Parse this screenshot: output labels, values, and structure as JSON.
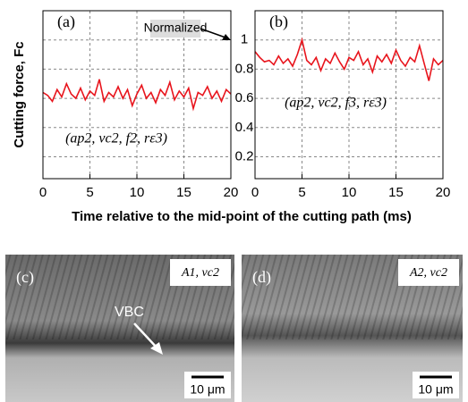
{
  "chart_data": [
    {
      "type": "line",
      "panel_label": "(a)",
      "annotation": "(ap2, vc2, f2, rε3)",
      "normalized_note": "Normalized",
      "y_axis_label": "Cutting force, Fc",
      "x_axis_label": "Time relative to the mid-point of the cutting path (ms)",
      "xlim": [
        0,
        20
      ],
      "xticks": [
        0,
        5,
        10,
        15,
        20
      ],
      "ylim": [
        0.05,
        1.2
      ],
      "yticks": [
        0.2,
        0.4,
        0.6,
        0.8,
        1.0
      ],
      "grid": true,
      "series": [
        {
          "color": "#e8141c",
          "x": [
            0,
            0.5,
            1,
            1.5,
            2,
            2.5,
            3,
            3.5,
            4,
            4.5,
            5,
            5.5,
            6,
            6.5,
            7,
            7.5,
            8,
            8.5,
            9,
            9.5,
            10,
            10.5,
            11,
            11.5,
            12,
            12.5,
            13,
            13.5,
            14,
            14.5,
            15,
            15.5,
            16,
            16.5,
            17,
            17.5,
            18,
            18.5,
            19,
            19.5,
            20
          ],
          "values": [
            0.64,
            0.62,
            0.58,
            0.66,
            0.61,
            0.7,
            0.63,
            0.6,
            0.67,
            0.59,
            0.65,
            0.62,
            0.73,
            0.58,
            0.64,
            0.61,
            0.68,
            0.6,
            0.66,
            0.55,
            0.63,
            0.69,
            0.6,
            0.64,
            0.57,
            0.66,
            0.62,
            0.71,
            0.59,
            0.65,
            0.61,
            0.67,
            0.53,
            0.64,
            0.62,
            0.68,
            0.6,
            0.65,
            0.58,
            0.66,
            0.63
          ]
        }
      ]
    },
    {
      "type": "line",
      "panel_label": "(b)",
      "annotation": "(ap2, vc2, f3, rε3)",
      "xlim": [
        0,
        20
      ],
      "xticks": [
        0,
        5,
        10,
        15,
        20
      ],
      "ylim": [
        0.05,
        1.2
      ],
      "yticks": [
        0.2,
        0.4,
        0.6,
        0.8,
        1.0
      ],
      "grid": true,
      "series": [
        {
          "color": "#e8141c",
          "x": [
            0,
            0.5,
            1,
            1.5,
            2,
            2.5,
            3,
            3.5,
            4,
            4.5,
            5,
            5.5,
            6,
            6.5,
            7,
            7.5,
            8,
            8.5,
            9,
            9.5,
            10,
            10.5,
            11,
            11.5,
            12,
            12.5,
            13,
            13.5,
            14,
            14.5,
            15,
            15.5,
            16,
            16.5,
            17,
            17.5,
            18,
            18.5,
            19,
            19.5,
            20
          ],
          "values": [
            0.92,
            0.88,
            0.85,
            0.86,
            0.83,
            0.89,
            0.84,
            0.87,
            0.82,
            0.9,
            1.0,
            0.86,
            0.83,
            0.88,
            0.79,
            0.87,
            0.84,
            0.91,
            0.85,
            0.8,
            0.88,
            0.86,
            0.92,
            0.83,
            0.87,
            0.78,
            0.89,
            0.85,
            0.9,
            0.84,
            0.93,
            0.86,
            0.82,
            0.88,
            0.85,
            0.96,
            0.84,
            0.72,
            0.87,
            0.83,
            0.86
          ]
        }
      ]
    }
  ],
  "panels": [
    {
      "label": "(c)",
      "condition": "A1, vc2",
      "annotation": "VBC",
      "scale_bar": "10 μm"
    },
    {
      "label": "(d)",
      "condition": "A2, vc2",
      "scale_bar": "10 μm"
    }
  ]
}
